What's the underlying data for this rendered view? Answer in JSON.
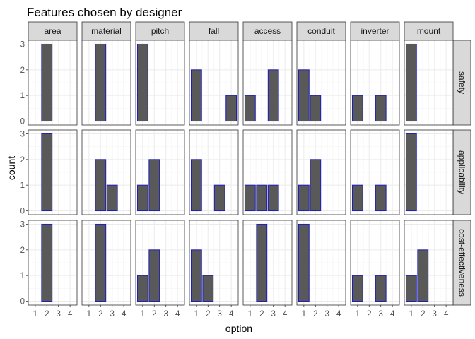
{
  "chart_data": {
    "type": "bar",
    "title": "Features chosen by designer",
    "xlabel": "option",
    "ylabel": "count",
    "x_ticks": [
      "1",
      "2",
      "3",
      "4"
    ],
    "y_ticks": [
      "0",
      "1",
      "2",
      "3"
    ],
    "ylim": [
      0,
      3
    ],
    "xlim": [
      0.4,
      4.6
    ],
    "grid": true,
    "bar_fill": "#595959",
    "bar_outline": "#1f1fb4",
    "strip_fill": "#d9d9d9",
    "grid_color": "#ebebeb",
    "columns": [
      "area",
      "material",
      "pitch",
      "fall",
      "access",
      "conduit",
      "inverter",
      "mount"
    ],
    "rows": [
      "safety",
      "applicability",
      "cost-effectiveness"
    ],
    "panels": [
      {
        "row": "safety",
        "column": "area",
        "bars": [
          {
            "option": 2,
            "count": 3
          }
        ]
      },
      {
        "row": "safety",
        "column": "material",
        "bars": [
          {
            "option": 2,
            "count": 3
          }
        ]
      },
      {
        "row": "safety",
        "column": "pitch",
        "bars": [
          {
            "option": 1,
            "count": 3
          }
        ]
      },
      {
        "row": "safety",
        "column": "fall",
        "bars": [
          {
            "option": 1,
            "count": 2
          },
          {
            "option": 4,
            "count": 1
          }
        ]
      },
      {
        "row": "safety",
        "column": "access",
        "bars": [
          {
            "option": 1,
            "count": 1
          },
          {
            "option": 3,
            "count": 2
          }
        ]
      },
      {
        "row": "safety",
        "column": "conduit",
        "bars": [
          {
            "option": 1,
            "count": 2
          },
          {
            "option": 2,
            "count": 1
          }
        ]
      },
      {
        "row": "safety",
        "column": "inverter",
        "bars": [
          {
            "option": 1,
            "count": 1
          },
          {
            "option": 3,
            "count": 1
          }
        ]
      },
      {
        "row": "safety",
        "column": "mount",
        "bars": [
          {
            "option": 1,
            "count": 3
          }
        ]
      },
      {
        "row": "applicability",
        "column": "area",
        "bars": [
          {
            "option": 2,
            "count": 3
          }
        ]
      },
      {
        "row": "applicability",
        "column": "material",
        "bars": [
          {
            "option": 2,
            "count": 2
          },
          {
            "option": 3,
            "count": 1
          }
        ]
      },
      {
        "row": "applicability",
        "column": "pitch",
        "bars": [
          {
            "option": 1,
            "count": 1
          },
          {
            "option": 2,
            "count": 2
          }
        ]
      },
      {
        "row": "applicability",
        "column": "fall",
        "bars": [
          {
            "option": 1,
            "count": 2
          },
          {
            "option": 3,
            "count": 1
          }
        ]
      },
      {
        "row": "applicability",
        "column": "access",
        "bars": [
          {
            "option": 1,
            "count": 1
          },
          {
            "option": 2,
            "count": 1
          },
          {
            "option": 3,
            "count": 1
          }
        ]
      },
      {
        "row": "applicability",
        "column": "conduit",
        "bars": [
          {
            "option": 1,
            "count": 1
          },
          {
            "option": 2,
            "count": 2
          }
        ]
      },
      {
        "row": "applicability",
        "column": "inverter",
        "bars": [
          {
            "option": 1,
            "count": 1
          },
          {
            "option": 3,
            "count": 1
          }
        ]
      },
      {
        "row": "applicability",
        "column": "mount",
        "bars": [
          {
            "option": 1,
            "count": 3
          }
        ]
      },
      {
        "row": "cost-effectiveness",
        "column": "area",
        "bars": [
          {
            "option": 2,
            "count": 3
          }
        ]
      },
      {
        "row": "cost-effectiveness",
        "column": "material",
        "bars": [
          {
            "option": 2,
            "count": 3
          }
        ]
      },
      {
        "row": "cost-effectiveness",
        "column": "pitch",
        "bars": [
          {
            "option": 1,
            "count": 1
          },
          {
            "option": 2,
            "count": 2
          }
        ]
      },
      {
        "row": "cost-effectiveness",
        "column": "fall",
        "bars": [
          {
            "option": 1,
            "count": 2
          },
          {
            "option": 2,
            "count": 1
          }
        ]
      },
      {
        "row": "cost-effectiveness",
        "column": "access",
        "bars": [
          {
            "option": 2,
            "count": 3
          }
        ]
      },
      {
        "row": "cost-effectiveness",
        "column": "conduit",
        "bars": [
          {
            "option": 1,
            "count": 3
          }
        ]
      },
      {
        "row": "cost-effectiveness",
        "column": "inverter",
        "bars": [
          {
            "option": 1,
            "count": 1
          },
          {
            "option": 3,
            "count": 1
          }
        ]
      },
      {
        "row": "cost-effectiveness",
        "column": "mount",
        "bars": [
          {
            "option": 1,
            "count": 1
          },
          {
            "option": 2,
            "count": 2
          }
        ]
      }
    ]
  }
}
